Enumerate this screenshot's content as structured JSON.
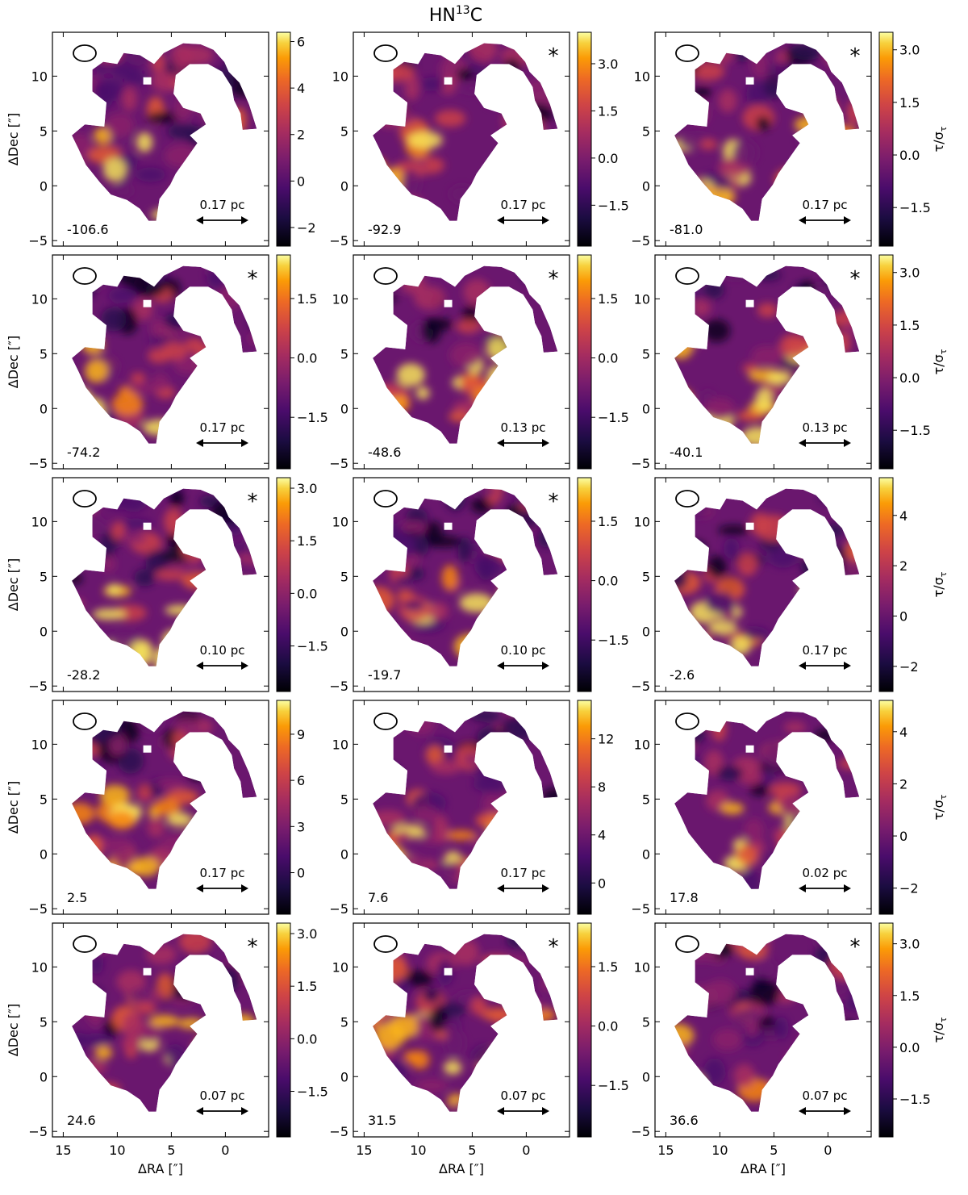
{
  "figure": {
    "title_main": "HN",
    "title_sup": "13",
    "title_tail": "C",
    "xlabel_main": "ΔRA [",
    "xlabel_unit": "″",
    "xlabel_end": "]",
    "ylabel_main": "ΔDec [",
    "ylabel_unit": "″",
    "ylabel_end": "]",
    "cbar_label_main": "τ/σ",
    "cbar_label_sub": "τ",
    "colormap": "inferno",
    "colors": {
      "low": "#000004",
      "mid": "#721f81",
      "high": "#fcfdbf"
    }
  },
  "chart_data": {
    "type": "heatmap",
    "xlim": [
      16,
      -4
    ],
    "ylim": [
      -5.5,
      14
    ],
    "x_ticks": [
      15,
      10,
      5,
      0
    ],
    "y_ticks": [
      -5,
      0,
      5,
      10
    ],
    "panels": [
      {
        "velocity": "-106.6",
        "scale_label": "0.17 pc",
        "star": false,
        "cbar_ticks": [
          "6",
          "4",
          "2",
          "0",
          "−2"
        ],
        "cbar_range": [
          -2.8,
          6.4
        ]
      },
      {
        "velocity": "-92.9",
        "scale_label": "0.17 pc",
        "star": true,
        "cbar_ticks": [
          "3.0",
          "1.5",
          "0.0",
          "−1.5"
        ],
        "cbar_range": [
          -2.8,
          4.0
        ]
      },
      {
        "velocity": "-81.0",
        "scale_label": "0.17 pc",
        "star": true,
        "cbar_ticks": [
          "3.0",
          "1.5",
          "0.0",
          "−1.5"
        ],
        "cbar_range": [
          -2.6,
          3.5
        ]
      },
      {
        "velocity": "-74.2",
        "scale_label": "0.17 pc",
        "star": true,
        "cbar_ticks": [
          "1.5",
          "0.0",
          "−1.5"
        ],
        "cbar_range": [
          -2.8,
          2.6
        ]
      },
      {
        "velocity": "-48.6",
        "scale_label": "0.13 pc",
        "star": true,
        "cbar_ticks": [
          "1.5",
          "0.0",
          "−1.5"
        ],
        "cbar_range": [
          -2.8,
          2.6
        ]
      },
      {
        "velocity": "-40.1",
        "scale_label": "0.13 pc",
        "star": true,
        "cbar_ticks": [
          "3.0",
          "1.5",
          "0.0",
          "−1.5"
        ],
        "cbar_range": [
          -2.6,
          3.5
        ]
      },
      {
        "velocity": "-28.2",
        "scale_label": "0.10 pc",
        "star": true,
        "cbar_ticks": [
          "3.0",
          "1.5",
          "0.0",
          "−1.5"
        ],
        "cbar_range": [
          -2.8,
          3.3
        ]
      },
      {
        "velocity": "-19.7",
        "scale_label": "0.10 pc",
        "star": true,
        "cbar_ticks": [
          "1.5",
          "0.0",
          "−1.5"
        ],
        "cbar_range": [
          -2.8,
          2.6
        ]
      },
      {
        "velocity": "-2.6",
        "scale_label": "0.17 pc",
        "star": false,
        "cbar_ticks": [
          "4",
          "2",
          "0",
          "−2"
        ],
        "cbar_range": [
          -3.0,
          5.5
        ]
      },
      {
        "velocity": "2.5",
        "scale_label": "0.17 pc",
        "star": false,
        "cbar_ticks": [
          "9",
          "6",
          "3",
          "0"
        ],
        "cbar_range": [
          -2.7,
          11.2
        ]
      },
      {
        "velocity": "7.6",
        "scale_label": "0.17 pc",
        "star": false,
        "cbar_ticks": [
          "12",
          "8",
          "4",
          "0"
        ],
        "cbar_range": [
          -2.6,
          15.2
        ]
      },
      {
        "velocity": "17.8",
        "scale_label": "0.02 pc",
        "star": false,
        "cbar_ticks": [
          "4",
          "2",
          "0",
          "−2"
        ],
        "cbar_range": [
          -3.0,
          5.2
        ]
      },
      {
        "velocity": "24.6",
        "scale_label": "0.07 pc",
        "star": true,
        "cbar_ticks": [
          "3.0",
          "1.5",
          "0.0",
          "−1.5"
        ],
        "cbar_range": [
          -2.8,
          3.3
        ]
      },
      {
        "velocity": "31.5",
        "scale_label": "0.07 pc",
        "star": true,
        "cbar_ticks": [
          "1.5",
          "0.0",
          "−1.5"
        ],
        "cbar_range": [
          -2.8,
          2.6
        ]
      },
      {
        "velocity": "36.6",
        "scale_label": "0.07 pc",
        "star": true,
        "cbar_ticks": [
          "3.0",
          "1.5",
          "0.0",
          "−1.5"
        ],
        "cbar_range": [
          -2.6,
          3.6
        ]
      }
    ]
  }
}
